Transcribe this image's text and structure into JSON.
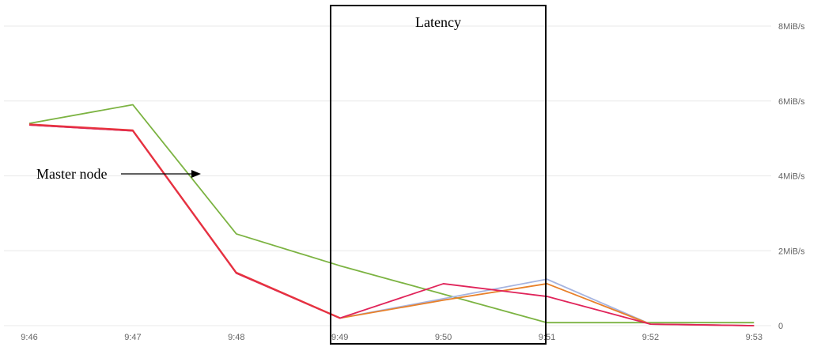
{
  "chart_data": {
    "type": "line",
    "x": [
      "9:46",
      "9:47",
      "9:48",
      "9:49",
      "9:50",
      "9:51",
      "9:52",
      "9:53"
    ],
    "ylim": [
      0,
      8
    ],
    "y_ticks": [
      0,
      2,
      4,
      6,
      8
    ],
    "y_tick_labels": [
      "0",
      "2MiB/s",
      "4MiB/s",
      "6MiB/s",
      "8MiB/s"
    ],
    "grid": true,
    "series": [
      {
        "color": "#7cb342",
        "points": [
          [
            "9:46",
            5.4
          ],
          [
            "9:47",
            5.9
          ],
          [
            "9:48",
            2.45
          ],
          [
            "9:49",
            1.6
          ],
          [
            "9:51",
            0.08
          ],
          [
            "9:53",
            0.08
          ]
        ]
      },
      {
        "color": "#a6b4e0",
        "points": [
          [
            "9:46",
            5.36
          ],
          [
            "9:47",
            5.2
          ],
          [
            "9:48",
            1.4
          ],
          [
            "9:49",
            0.2
          ],
          [
            "9:50",
            0.72
          ],
          [
            "9:51",
            1.24
          ],
          [
            "9:52",
            0.04
          ],
          [
            "9:53",
            0.0
          ]
        ]
      },
      {
        "color": "#e8802a",
        "points": [
          [
            "9:46",
            5.36
          ],
          [
            "9:47",
            5.2
          ],
          [
            "9:48",
            1.4
          ],
          [
            "9:49",
            0.2
          ],
          [
            "9:50",
            0.68
          ],
          [
            "9:51",
            1.12
          ],
          [
            "9:52",
            0.04
          ],
          [
            "9:53",
            0.0
          ]
        ]
      },
      {
        "color": "#e0245a",
        "points": [
          [
            "9:46",
            5.36
          ],
          [
            "9:47",
            5.2
          ],
          [
            "9:48",
            1.4
          ],
          [
            "9:49",
            0.2
          ],
          [
            "9:50",
            1.12
          ],
          [
            "9:51",
            0.78
          ],
          [
            "9:52",
            0.04
          ],
          [
            "9:53",
            0.0
          ]
        ]
      },
      {
        "color": "#e8343c",
        "points": [
          [
            "9:46",
            5.38
          ],
          [
            "9:47",
            5.22
          ],
          [
            "9:48",
            1.42
          ],
          [
            "9:49",
            0.21
          ]
        ]
      }
    ],
    "annotations": {
      "master_node_label": "Master node",
      "latency_label": "Latency"
    }
  }
}
